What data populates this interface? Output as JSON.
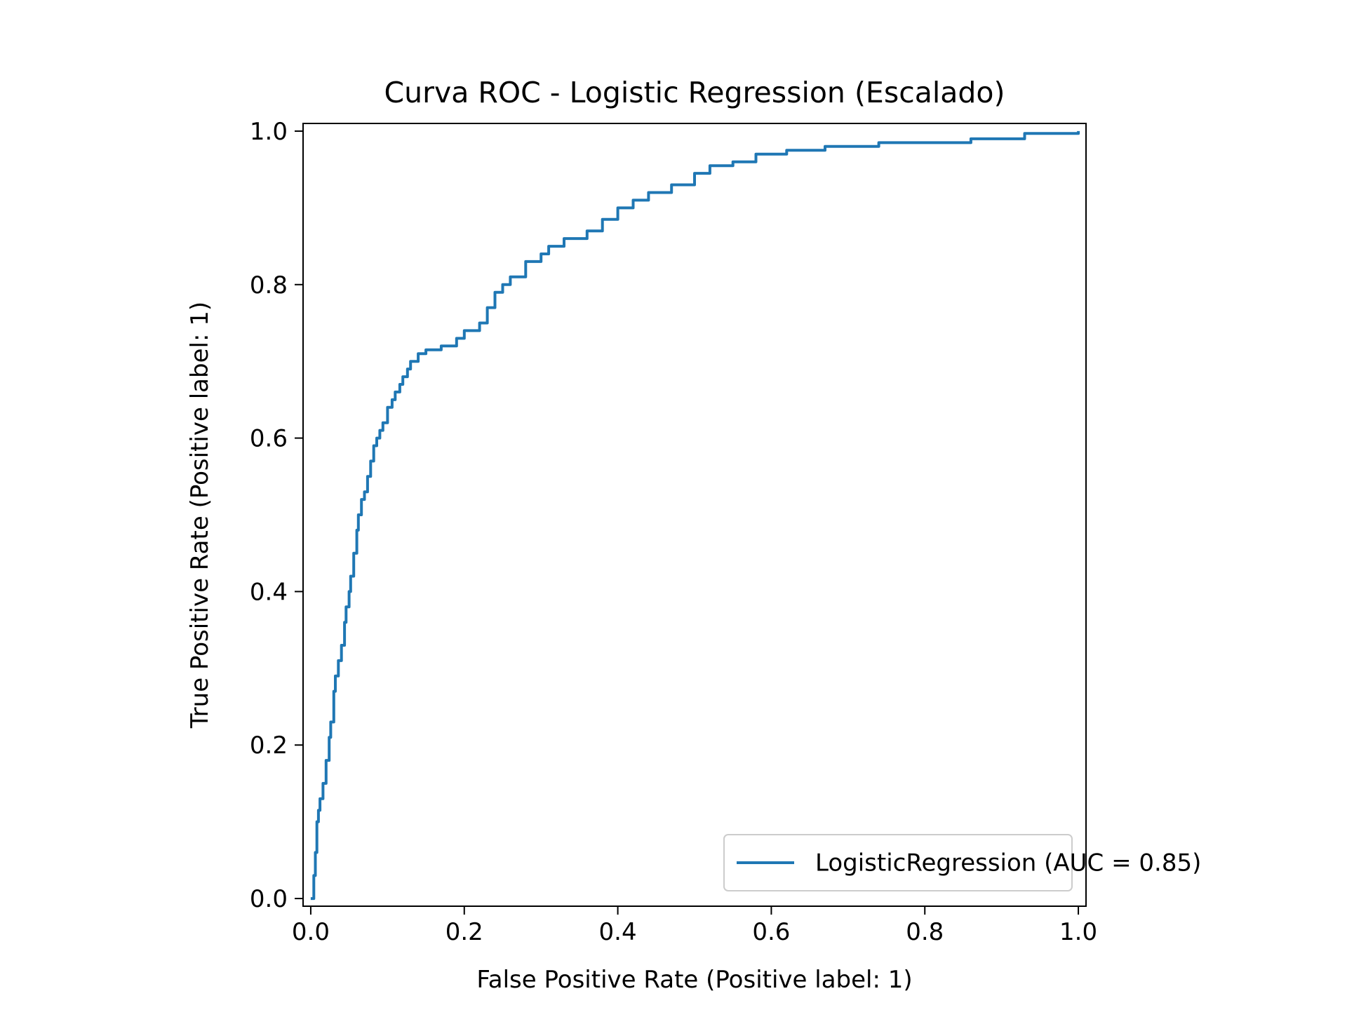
{
  "chart_data": {
    "type": "line",
    "title": "Curva ROC - Logistic Regression (Escalado)",
    "xlabel": "False Positive Rate (Positive label: 1)",
    "ylabel": "True Positive Rate (Positive label: 1)",
    "xlim": [
      -0.01,
      1.01
    ],
    "ylim": [
      -0.01,
      1.01
    ],
    "x_ticks": [
      0.0,
      0.2,
      0.4,
      0.6,
      0.8,
      1.0
    ],
    "y_ticks": [
      0.0,
      0.2,
      0.4,
      0.6,
      0.8,
      1.0
    ],
    "x_tick_labels": [
      "0.0",
      "0.2",
      "0.4",
      "0.6",
      "0.8",
      "1.0"
    ],
    "y_tick_labels": [
      "0.0",
      "0.2",
      "0.4",
      "0.6",
      "0.8",
      "1.0"
    ],
    "grid": false,
    "legend_position": "lower-right",
    "series": [
      {
        "name": "LogisticRegression (AUC = 0.85)",
        "color": "#1f77b4",
        "x": [
          0.0,
          0.004,
          0.006,
          0.008,
          0.01,
          0.012,
          0.016,
          0.02,
          0.024,
          0.026,
          0.03,
          0.032,
          0.036,
          0.04,
          0.044,
          0.046,
          0.05,
          0.052,
          0.056,
          0.06,
          0.062,
          0.066,
          0.07,
          0.074,
          0.078,
          0.082,
          0.086,
          0.09,
          0.094,
          0.1,
          0.106,
          0.11,
          0.116,
          0.12,
          0.126,
          0.13,
          0.14,
          0.15,
          0.17,
          0.19,
          0.2,
          0.22,
          0.23,
          0.24,
          0.25,
          0.26,
          0.28,
          0.3,
          0.31,
          0.33,
          0.36,
          0.38,
          0.4,
          0.42,
          0.44,
          0.47,
          0.5,
          0.52,
          0.55,
          0.58,
          0.62,
          0.67,
          0.74,
          0.86,
          0.93,
          1.0
        ],
        "y": [
          0.0,
          0.03,
          0.06,
          0.1,
          0.115,
          0.13,
          0.15,
          0.18,
          0.21,
          0.23,
          0.27,
          0.29,
          0.31,
          0.33,
          0.36,
          0.38,
          0.4,
          0.42,
          0.45,
          0.48,
          0.5,
          0.52,
          0.53,
          0.55,
          0.57,
          0.59,
          0.6,
          0.61,
          0.62,
          0.64,
          0.65,
          0.66,
          0.67,
          0.68,
          0.69,
          0.7,
          0.71,
          0.715,
          0.72,
          0.73,
          0.74,
          0.75,
          0.77,
          0.79,
          0.8,
          0.81,
          0.83,
          0.84,
          0.85,
          0.86,
          0.87,
          0.885,
          0.9,
          0.91,
          0.92,
          0.93,
          0.945,
          0.955,
          0.96,
          0.97,
          0.975,
          0.98,
          0.985,
          0.99,
          0.997,
          1.0
        ]
      }
    ]
  }
}
